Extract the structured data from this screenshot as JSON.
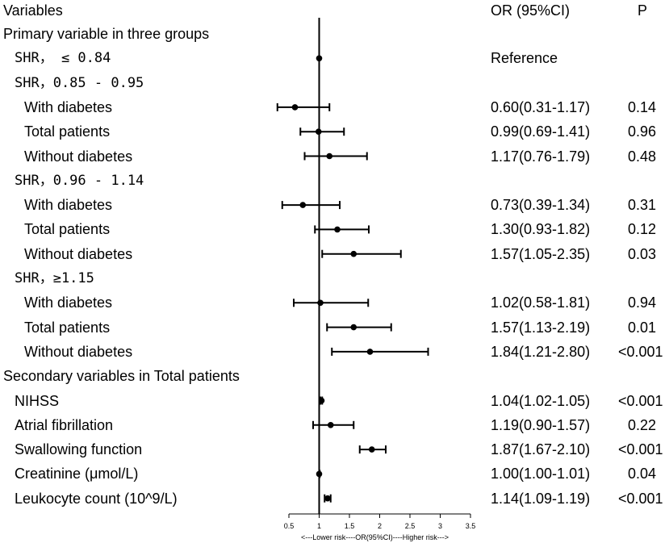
{
  "header": {
    "variables": "Variables",
    "or_ci": "OR (95%CI)",
    "p": "P"
  },
  "chart_data": {
    "type": "forest",
    "x_axis": {
      "label": "<---Lower risk----OR(95%CI)----Higher risk--->",
      "ticks": [
        "0.5",
        "1",
        "1.5",
        "2",
        "2.5",
        "3",
        "3.5"
      ],
      "range": [
        0.5,
        3.5
      ],
      "reference_line": 1
    },
    "rows": [
      {
        "kind": "section",
        "label": "Primary variable in three groups"
      },
      {
        "kind": "group",
        "label": "SHR， ≤ 0.84",
        "or": 1.0,
        "lo": 1.0,
        "hi": 1.0,
        "text": "Reference",
        "p": ""
      },
      {
        "kind": "group",
        "label": "SHR，0.85 - 0.95"
      },
      {
        "kind": "item",
        "label": "With diabetes",
        "or": 0.6,
        "lo": 0.31,
        "hi": 1.17,
        "text": "0.60(0.31-1.17)",
        "p": "0.14"
      },
      {
        "kind": "item",
        "label": "Total patients",
        "or": 0.99,
        "lo": 0.69,
        "hi": 1.41,
        "text": "0.99(0.69-1.41)",
        "p": "0.96"
      },
      {
        "kind": "item",
        "label": "Without diabetes",
        "or": 1.17,
        "lo": 0.76,
        "hi": 1.79,
        "text": "1.17(0.76-1.79)",
        "p": "0.48"
      },
      {
        "kind": "group",
        "label": "SHR，0.96 - 1.14"
      },
      {
        "kind": "item",
        "label": "With diabetes",
        "or": 0.73,
        "lo": 0.39,
        "hi": 1.34,
        "text": "0.73(0.39-1.34)",
        "p": "0.31"
      },
      {
        "kind": "item",
        "label": "Total patients",
        "or": 1.3,
        "lo": 0.93,
        "hi": 1.82,
        "text": "1.30(0.93-1.82)",
        "p": "0.12"
      },
      {
        "kind": "item",
        "label": "Without diabetes",
        "or": 1.57,
        "lo": 1.05,
        "hi": 2.35,
        "text": "1.57(1.05-2.35)",
        "p": "0.03"
      },
      {
        "kind": "group",
        "label": "SHR，≥1.15"
      },
      {
        "kind": "item",
        "label": "With diabetes",
        "or": 1.02,
        "lo": 0.58,
        "hi": 1.81,
        "text": "1.02(0.58-1.81)",
        "p": "0.94"
      },
      {
        "kind": "item",
        "label": "Total patients",
        "or": 1.57,
        "lo": 1.13,
        "hi": 2.19,
        "text": "1.57(1.13-2.19)",
        "p": "0.01"
      },
      {
        "kind": "item",
        "label": "Without diabetes",
        "or": 1.84,
        "lo": 1.21,
        "hi": 2.8,
        "text": "1.84(1.21-2.80)",
        "p": "<0.001"
      },
      {
        "kind": "section",
        "label": "Secondary variables in Total patients"
      },
      {
        "kind": "secitem",
        "label": "NIHSS",
        "or": 1.04,
        "lo": 1.02,
        "hi": 1.05,
        "text": "1.04(1.02-1.05)",
        "p": "<0.001"
      },
      {
        "kind": "secitem",
        "label": "Atrial fibrillation",
        "or": 1.19,
        "lo": 0.9,
        "hi": 1.57,
        "text": "1.19(0.90-1.57)",
        "p": "0.22"
      },
      {
        "kind": "secitem",
        "label": "Swallowing function",
        "or": 1.87,
        "lo": 1.67,
        "hi": 2.1,
        "text": "1.87(1.67-2.10)",
        "p": "<0.001"
      },
      {
        "kind": "secitem",
        "label": "Creatinine (μmol/L)",
        "or": 1.0,
        "lo": 1.0,
        "hi": 1.01,
        "text": "1.00(1.00-1.01)",
        "p": "0.04"
      },
      {
        "kind": "secitem",
        "label": "Leukocyte count (10^9/L)",
        "or": 1.14,
        "lo": 1.09,
        "hi": 1.19,
        "text": "1.14(1.09-1.19)",
        "p": "<0.001"
      }
    ]
  }
}
